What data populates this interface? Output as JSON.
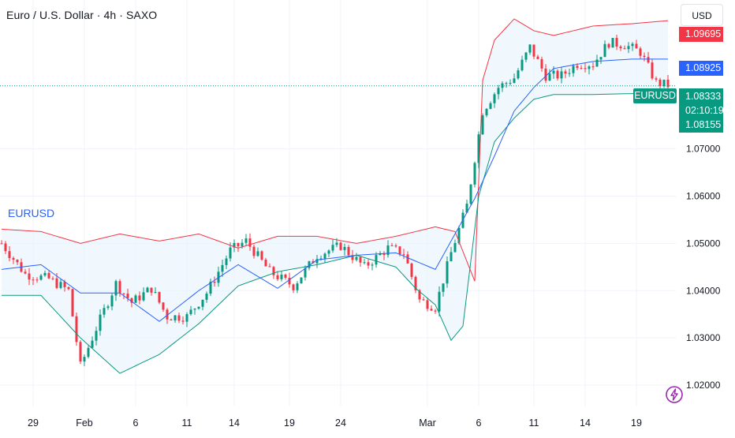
{
  "header": {
    "title": "Euro / U.S. Dollar · 4h · SAXO"
  },
  "currency_button": "USD",
  "symbol_label": "EURUSD",
  "price_tags": {
    "upper_band": "1.09695",
    "middle_band": "1.08925",
    "last_symbol": "EURUSD",
    "last_price": "1.08333",
    "countdown": "02:10:19",
    "lower_band": "1.08155"
  },
  "colors": {
    "up": "#089981",
    "down": "#f23645",
    "basis": "#2962ff",
    "upper": "#f23645",
    "lower": "#089981",
    "fill": "#e3f2fd"
  },
  "icons": {
    "flash": "lightning-icon"
  },
  "chart_data": {
    "type": "candlestick",
    "title": "Euro / U.S. Dollar · 4h · SAXO",
    "y_axis": {
      "ticks": [
        "1.02000",
        "1.03000",
        "1.04000",
        "1.05000",
        "1.06000",
        "1.07000"
      ],
      "ylim": [
        1.0155,
        1.1015
      ]
    },
    "x_axis": {
      "ticks": [
        "29",
        "Feb",
        "6",
        "11",
        "14",
        "19",
        "24",
        "Mar",
        "6",
        "11",
        "14",
        "19"
      ],
      "n_bars": 170
    },
    "grid": true,
    "series": [
      {
        "name": "EURUSD",
        "kind": "candles"
      },
      {
        "kind": "bollinger_upper",
        "anchors": [
          [
            0,
            1.053
          ],
          [
            10,
            1.0525
          ],
          [
            20,
            1.05
          ],
          [
            30,
            1.052
          ],
          [
            40,
            1.0505
          ],
          [
            50,
            1.052
          ],
          [
            60,
            1.049
          ],
          [
            70,
            1.0515
          ],
          [
            80,
            1.0515
          ],
          [
            90,
            1.05
          ],
          [
            100,
            1.0515
          ],
          [
            110,
            1.0535
          ],
          [
            115,
            1.0525
          ],
          [
            120,
            1.042
          ],
          [
            122,
            1.0845
          ],
          [
            125,
            1.093
          ],
          [
            130,
            1.0975
          ],
          [
            135,
            1.095
          ],
          [
            140,
            1.094
          ],
          [
            150,
            1.096
          ],
          [
            160,
            1.0965
          ],
          [
            170,
            1.0972
          ]
        ]
      },
      {
        "kind": "bollinger_basis",
        "anchors": [
          [
            0,
            1.0445
          ],
          [
            10,
            1.0455
          ],
          [
            20,
            1.0395
          ],
          [
            30,
            1.0395
          ],
          [
            40,
            1.0335
          ],
          [
            50,
            1.04
          ],
          [
            60,
            1.0455
          ],
          [
            70,
            1.0405
          ],
          [
            80,
            1.0465
          ],
          [
            90,
            1.0475
          ],
          [
            100,
            1.048
          ],
          [
            110,
            1.0445
          ],
          [
            120,
            1.0595
          ],
          [
            125,
            1.0685
          ],
          [
            130,
            1.078
          ],
          [
            135,
            1.083
          ],
          [
            140,
            1.087
          ],
          [
            150,
            1.0885
          ],
          [
            160,
            1.089
          ],
          [
            170,
            1.089
          ]
        ]
      },
      {
        "kind": "bollinger_lower",
        "anchors": [
          [
            0,
            1.039
          ],
          [
            10,
            1.039
          ],
          [
            20,
            1.03
          ],
          [
            30,
            1.0225
          ],
          [
            40,
            1.0265
          ],
          [
            50,
            1.033
          ],
          [
            60,
            1.041
          ],
          [
            70,
            1.044
          ],
          [
            80,
            1.0455
          ],
          [
            90,
            1.0475
          ],
          [
            100,
            1.045
          ],
          [
            105,
            1.0405
          ],
          [
            110,
            1.037
          ],
          [
            114,
            1.0295
          ],
          [
            117,
            1.0325
          ],
          [
            121,
            1.06
          ],
          [
            125,
            1.0715
          ],
          [
            130,
            1.0765
          ],
          [
            135,
            1.0805
          ],
          [
            140,
            1.0815
          ],
          [
            150,
            1.0815
          ],
          [
            160,
            1.0817
          ],
          [
            170,
            1.0816
          ]
        ]
      },
      {
        "kind": "close_path",
        "anchors": [
          [
            0,
            1.05
          ],
          [
            6,
            1.0435
          ],
          [
            12,
            1.0425
          ],
          [
            17,
            1.04
          ],
          [
            20,
            1.024
          ],
          [
            24,
            1.032
          ],
          [
            29,
            1.0415
          ],
          [
            33,
            1.0375
          ],
          [
            38,
            1.0405
          ],
          [
            42,
            1.0345
          ],
          [
            47,
            1.0345
          ],
          [
            52,
            1.0395
          ],
          [
            58,
            1.0485
          ],
          [
            62,
            1.0505
          ],
          [
            68,
            1.044
          ],
          [
            74,
            1.041
          ],
          [
            80,
            1.0475
          ],
          [
            86,
            1.0495
          ],
          [
            92,
            1.045
          ],
          [
            98,
            1.049
          ],
          [
            102,
            1.048
          ],
          [
            106,
            1.038
          ],
          [
            110,
            1.0365
          ],
          [
            114,
            1.048
          ],
          [
            118,
            1.058
          ],
          [
            122,
            1.078
          ],
          [
            126,
            1.083
          ],
          [
            130,
            1.085
          ],
          [
            134,
            1.0915
          ],
          [
            138,
            1.0855
          ],
          [
            142,
            1.0855
          ],
          [
            146,
            1.088
          ],
          [
            150,
            1.088
          ],
          [
            154,
            1.0925
          ],
          [
            158,
            1.092
          ],
          [
            162,
            1.0905
          ],
          [
            166,
            1.084
          ],
          [
            170,
            1.0833
          ]
        ]
      },
      {
        "kind": "last_price_line",
        "value": 1.08333
      }
    ]
  }
}
